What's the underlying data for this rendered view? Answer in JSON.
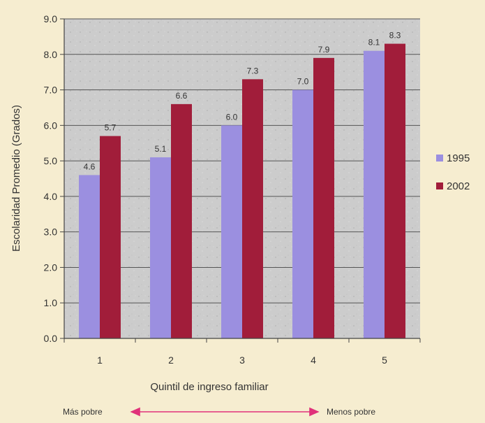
{
  "chart_data": {
    "type": "bar",
    "categories": [
      "1",
      "2",
      "3",
      "4",
      "5"
    ],
    "series": [
      {
        "name": "1995",
        "values": [
          4.6,
          5.1,
          6.0,
          7.0,
          8.1
        ],
        "color": "#9b8fe0"
      },
      {
        "name": "2002",
        "values": [
          5.7,
          6.6,
          7.3,
          7.9,
          8.3
        ],
        "color": "#a11d3a"
      }
    ],
    "value_labels": [
      [
        "4.6",
        "5.1",
        "6.0",
        "7.0",
        "8.1"
      ],
      [
        "5.7",
        "6.6",
        "7.3",
        "7.9",
        "8.3"
      ]
    ],
    "ylim": [
      0,
      9
    ],
    "yticks": [
      "0.0",
      "1.0",
      "2.0",
      "3.0",
      "4.0",
      "5.0",
      "6.0",
      "7.0",
      "8.0",
      "9.0"
    ],
    "xlabel": "Quintil de ingreso familiar",
    "ylabel": "Escolaridad Promedio (Grados)",
    "legend": {
      "position": "right"
    },
    "grid": true,
    "annotations": {
      "left": "Más pobre",
      "right": "Menos pobre"
    },
    "colors": {
      "plot_bg": "#cccccc",
      "page_bg": "#f6edd0",
      "grid": "#555555",
      "arrow": "#e0317a"
    }
  }
}
